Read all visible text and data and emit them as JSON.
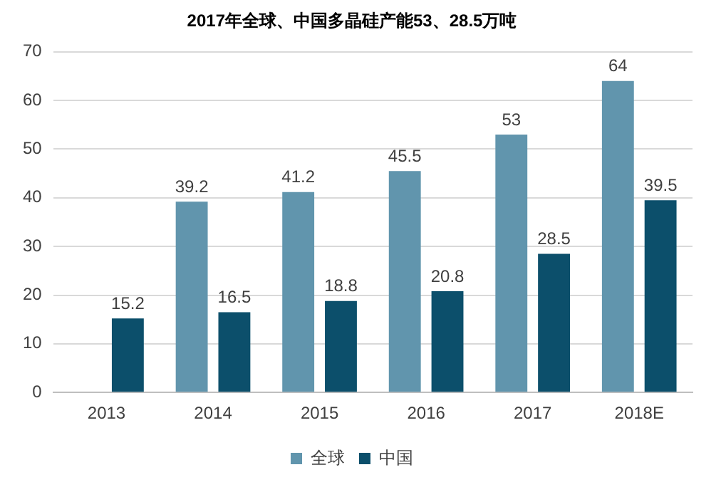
{
  "chart_data": {
    "type": "bar",
    "title": "2017年全球、中国多晶硅产能53、28.5万吨",
    "categories": [
      "2013",
      "2014",
      "2015",
      "2016",
      "2017",
      "2018E"
    ],
    "series": [
      {
        "name": "全球",
        "color": "#6195ad",
        "values": [
          null,
          39.2,
          41.2,
          45.5,
          53,
          64
        ]
      },
      {
        "name": "中国",
        "color": "#0c4f6b",
        "values": [
          15.2,
          16.5,
          18.8,
          20.8,
          28.5,
          39.5
        ]
      }
    ],
    "ylim": [
      0,
      70
    ],
    "yticks": [
      0,
      10,
      20,
      30,
      40,
      50,
      60,
      70
    ],
    "grid": "y",
    "legend": "bottom",
    "data_labels": true
  }
}
